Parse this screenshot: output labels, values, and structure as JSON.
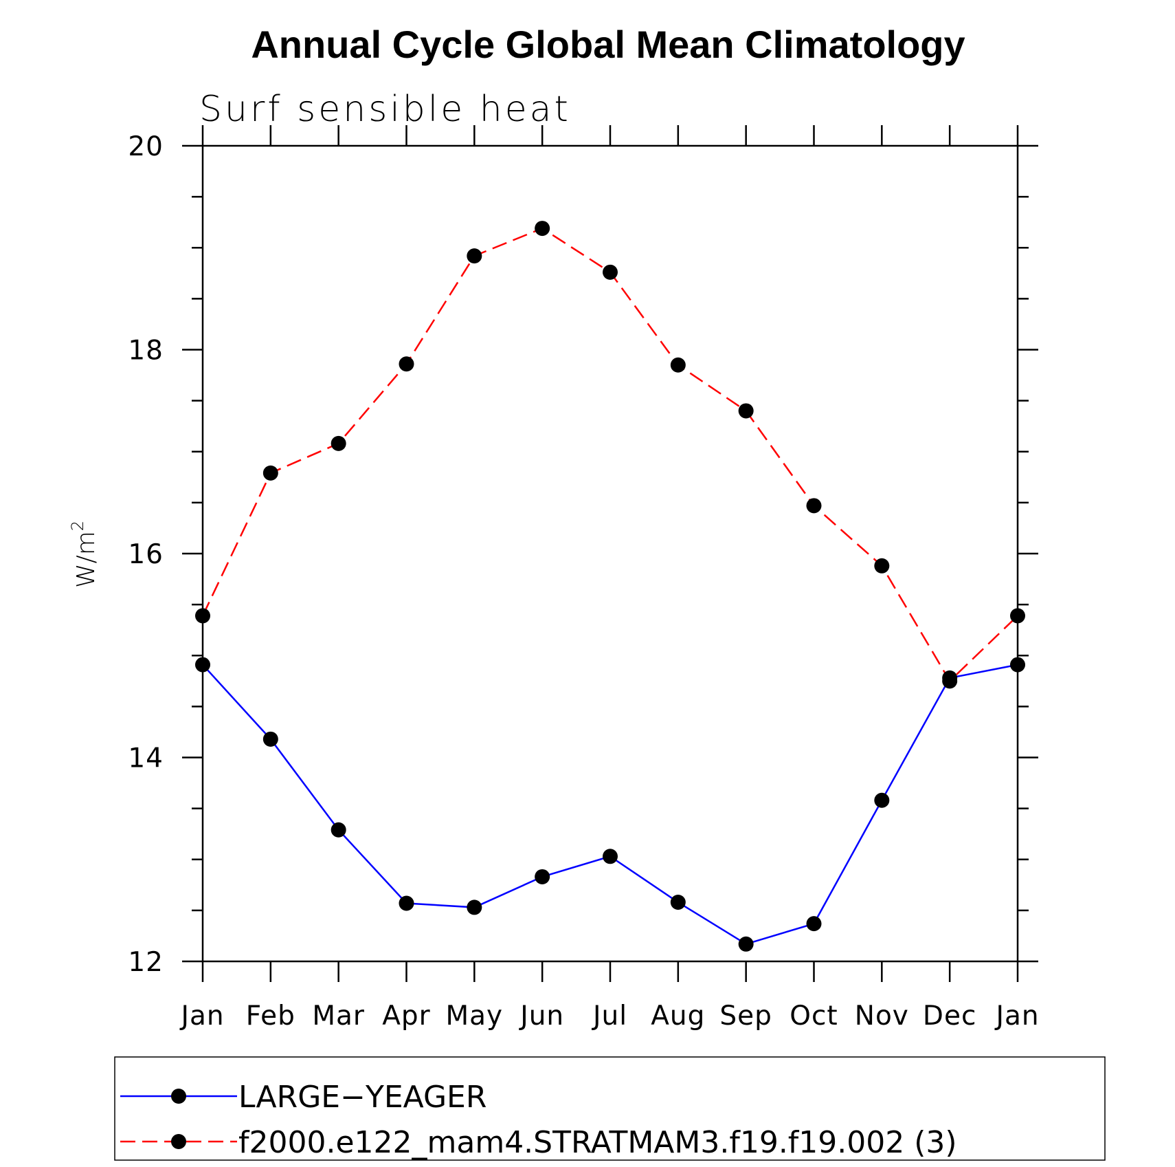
{
  "title": "Annual Cycle Global Mean Climatology",
  "subtitle": "Surf sensible heat",
  "chart_data": {
    "type": "line",
    "title": "Annual Cycle Global Mean Climatology",
    "subtitle": "Surf sensible heat",
    "ylabel_base": "W/m",
    "ylabel_sup": "2",
    "xlabel": "",
    "categories": [
      "Jan",
      "Feb",
      "Mar",
      "Apr",
      "May",
      "Jun",
      "Jul",
      "Aug",
      "Sep",
      "Oct",
      "Nov",
      "Dec",
      "Jan"
    ],
    "ylim": [
      12,
      20
    ],
    "yticks": [
      "12",
      "14",
      "16",
      "18",
      "20"
    ],
    "series": [
      {
        "name": "LARGE−YEAGER",
        "color": "#0000ff",
        "dash": "solid",
        "marker": "filled-circle",
        "values": [
          14.91,
          14.18,
          13.29,
          12.57,
          12.53,
          12.83,
          13.03,
          12.58,
          12.17,
          12.37,
          13.58,
          14.78,
          14.91
        ]
      },
      {
        "name": "f2000.e122_mam4.STRATMAM3.f19.f19.002 (3)",
        "color": "#ff0000",
        "dash": "dashed",
        "marker": "filled-circle",
        "values": [
          15.39,
          16.79,
          17.08,
          17.86,
          18.92,
          19.19,
          18.76,
          17.85,
          17.4,
          16.47,
          15.88,
          14.75,
          15.39
        ]
      }
    ],
    "legend_position": "bottom"
  }
}
